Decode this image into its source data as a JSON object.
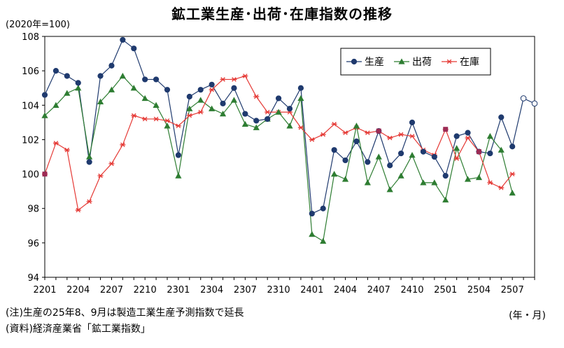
{
  "title": "鉱工業生産･出荷･在庫指数の推移",
  "unit_label": "(2020年=100)",
  "x_axis_unit": "(年・月)",
  "notes": [
    "(注)生産の25年8、9月は製造工業生産予測指数で延長",
    "(資料)経済産業省「鉱工業指数」"
  ],
  "colors": {
    "production": "#1f3a6e",
    "shipments": "#2e7d32",
    "inventory": "#e53935",
    "marker_overlap": "#9c2b54"
  },
  "chart_data": {
    "type": "line",
    "ylim": [
      94,
      108
    ],
    "yticks": [
      94,
      96,
      98,
      100,
      102,
      104,
      106,
      108
    ],
    "x_tick_labels": [
      "2201",
      "2204",
      "2207",
      "2210",
      "2301",
      "2304",
      "2307",
      "2310",
      "2401",
      "2404",
      "2407",
      "2410",
      "2501",
      "2504",
      "2507"
    ],
    "x": [
      "2201",
      "2202",
      "2203",
      "2204",
      "2205",
      "2206",
      "2207",
      "2208",
      "2209",
      "2210",
      "2211",
      "2212",
      "2301",
      "2302",
      "2303",
      "2304",
      "2305",
      "2306",
      "2307",
      "2308",
      "2309",
      "2310",
      "2311",
      "2312",
      "2401",
      "2402",
      "2403",
      "2404",
      "2405",
      "2406",
      "2407",
      "2408",
      "2409",
      "2410",
      "2411",
      "2412",
      "2501",
      "2502",
      "2503",
      "2504",
      "2505",
      "2506",
      "2507",
      "2508",
      "2509"
    ],
    "legend_position": "top-right",
    "series": [
      {
        "name": "生産",
        "marker": "circle",
        "values": [
          104.6,
          106.0,
          105.7,
          105.3,
          100.7,
          105.7,
          106.3,
          107.8,
          107.3,
          105.5,
          105.5,
          104.9,
          101.1,
          104.5,
          104.9,
          105.2,
          104.1,
          105.0,
          103.5,
          103.1,
          103.2,
          104.4,
          103.8,
          105.0,
          97.7,
          98.0,
          101.4,
          100.8,
          101.9,
          100.7,
          102.5,
          100.5,
          101.2,
          103.0,
          101.3,
          101.0,
          99.9,
          102.2,
          102.4,
          101.3,
          101.2,
          103.3,
          101.6,
          null,
          null
        ],
        "forecast": [
          null,
          null,
          null,
          null,
          null,
          null,
          null,
          null,
          null,
          null,
          null,
          null,
          null,
          null,
          null,
          null,
          null,
          null,
          null,
          null,
          null,
          null,
          null,
          null,
          null,
          null,
          null,
          null,
          null,
          null,
          null,
          null,
          null,
          null,
          null,
          null,
          null,
          null,
          null,
          null,
          null,
          null,
          101.6,
          104.4,
          104.1
        ]
      },
      {
        "name": "出荷",
        "marker": "triangle",
        "values": [
          103.4,
          104.0,
          104.7,
          105.0,
          101.0,
          104.2,
          104.9,
          105.7,
          105.0,
          104.4,
          104.0,
          102.8,
          99.9,
          103.8,
          104.3,
          103.8,
          103.5,
          104.3,
          102.9,
          102.7,
          103.2,
          103.6,
          102.8,
          104.4,
          96.5,
          96.1,
          100.0,
          99.7,
          102.8,
          99.5,
          101.0,
          99.1,
          99.9,
          101.1,
          99.5,
          99.5,
          98.5,
          101.5,
          99.7,
          99.8,
          102.2,
          101.4,
          98.9,
          null,
          null
        ]
      },
      {
        "name": "在庫",
        "marker": "asterisk",
        "values": [
          100.0,
          101.8,
          101.4,
          97.9,
          98.4,
          99.9,
          100.6,
          101.7,
          103.4,
          103.2,
          103.2,
          103.1,
          102.8,
          103.4,
          103.6,
          104.9,
          105.5,
          105.5,
          105.7,
          104.5,
          103.6,
          103.6,
          103.6,
          102.7,
          102.0,
          102.3,
          102.9,
          102.4,
          102.7,
          102.4,
          102.5,
          102.1,
          102.3,
          102.2,
          101.4,
          101.1,
          102.6,
          100.9,
          102.1,
          101.3,
          99.5,
          99.2,
          100.0,
          null,
          null
        ]
      }
    ]
  }
}
